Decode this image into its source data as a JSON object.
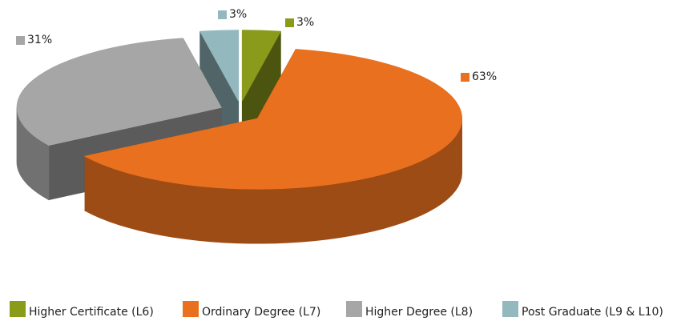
{
  "chart_data": {
    "type": "pie3d",
    "categories": [
      "Higher Certificate (L6)",
      "Ordinary Degree (L7)",
      "Higher Degree (L8)",
      "Post Graduate (L9 & L10)"
    ],
    "values": [
      3,
      63,
      31,
      3
    ],
    "value_labels": [
      "3%",
      "63%",
      "31%",
      "3%"
    ],
    "colors": [
      "#8a9a1b",
      "#e8701f",
      "#a6a6a6",
      "#93b8be"
    ],
    "legend": "bottom"
  }
}
